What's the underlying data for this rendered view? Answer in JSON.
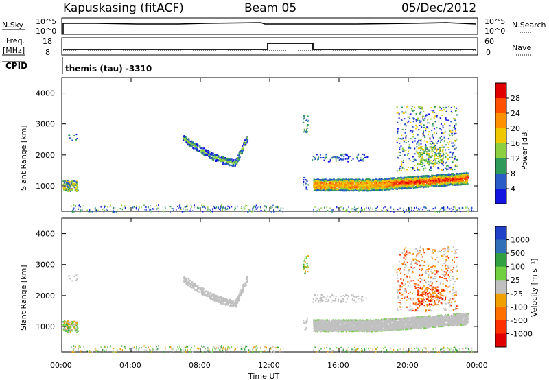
{
  "header": {
    "station": "Kapuskasing (fitACF)",
    "beam": "Beam 05",
    "date": "05/Dec/2012"
  },
  "top_panels": {
    "nsky_label": "N.Sky",
    "nsearch_label": "N.Search",
    "nsky_ticks": [
      "10^5",
      "10^0"
    ],
    "nsearch_ticks": [
      "10^5",
      "10^0"
    ],
    "freq_label": "Freq.",
    "freq_unit": "[MHz]",
    "freq_ticks": [
      "18",
      "8"
    ],
    "nave_ticks": [
      "60",
      "0"
    ],
    "nave_label": "Nave",
    "cpid_label": "CPID",
    "cpid_text": "themis (tau) -3310"
  },
  "axes": {
    "ylabel": "Slant Range [km]",
    "xlabel": "Time UT",
    "yticks": [
      "4000",
      "3000",
      "2000",
      "1000"
    ],
    "xticks": [
      "00:00",
      "04:00",
      "08:00",
      "12:00",
      "16:00",
      "20:00",
      "00:00"
    ]
  },
  "power_scale": {
    "label": "Power [dB]",
    "ticks": [
      "28",
      "24",
      "20",
      "16",
      "12",
      "8",
      "4"
    ],
    "colors": [
      "#e00000",
      "#ff5000",
      "#ff9000",
      "#f0c800",
      "#8cd040",
      "#2e9a5a",
      "#2a5cc8",
      "#1414e0"
    ]
  },
  "velocity_scale": {
    "label": "Velocity [m s⁻¹]",
    "ticks": [
      "1000",
      "500",
      "100",
      "25",
      "-25",
      "-100",
      "-500",
      "-1000"
    ],
    "colors": [
      "#2040c8",
      "#3070b8",
      "#30a040",
      "#70d040",
      "#c0c0c0",
      "#f0a000",
      "#ff7000",
      "#ff3000",
      "#e00000"
    ]
  },
  "chart_data": [
    {
      "type": "heatmap",
      "title": "Power",
      "xlabel": "Time UT",
      "ylabel": "Slant Range [km]",
      "xlim": [
        "00:00",
        "24:00"
      ],
      "ylim": [
        180,
        4500
      ],
      "colorbar": "Power [dB]",
      "features": [
        {
          "time": [
            "00:00",
            "00:50"
          ],
          "range_km": [
            850,
            1200
          ],
          "power_db": [
            8,
            16
          ]
        },
        {
          "time": [
            "07:00",
            "10:40"
          ],
          "range_km": [
            1650,
            2650
          ],
          "power_db": [
            4,
            16
          ]
        },
        {
          "time": [
            "14:30",
            "23:30"
          ],
          "range_km": [
            700,
            1400
          ],
          "power_db": [
            8,
            28
          ]
        },
        {
          "time": [
            "19:30",
            "23:00"
          ],
          "range_km": [
            1500,
            3600
          ],
          "power_db": [
            4,
            16
          ]
        }
      ]
    },
    {
      "type": "heatmap",
      "title": "Velocity",
      "xlabel": "Time UT",
      "ylabel": "Slant Range [km]",
      "xlim": [
        "00:00",
        "24:00"
      ],
      "ylim": [
        180,
        4500
      ],
      "colorbar": "Velocity [m s⁻¹]",
      "features": [
        {
          "time": [
            "00:00",
            "00:50"
          ],
          "range_km": [
            850,
            1200
          ],
          "velocity": [
            0,
            100
          ]
        },
        {
          "time": [
            "07:00",
            "10:40"
          ],
          "range_km": [
            1650,
            2650
          ],
          "velocity": [
            -25,
            25
          ]
        },
        {
          "time": [
            "14:30",
            "23:30"
          ],
          "range_km": [
            700,
            1400
          ],
          "velocity": [
            -25,
            25
          ]
        },
        {
          "time": [
            "20:30",
            "22:00"
          ],
          "range_km": [
            1700,
            3600
          ],
          "velocity": [
            -1000,
            -100
          ]
        }
      ]
    }
  ]
}
